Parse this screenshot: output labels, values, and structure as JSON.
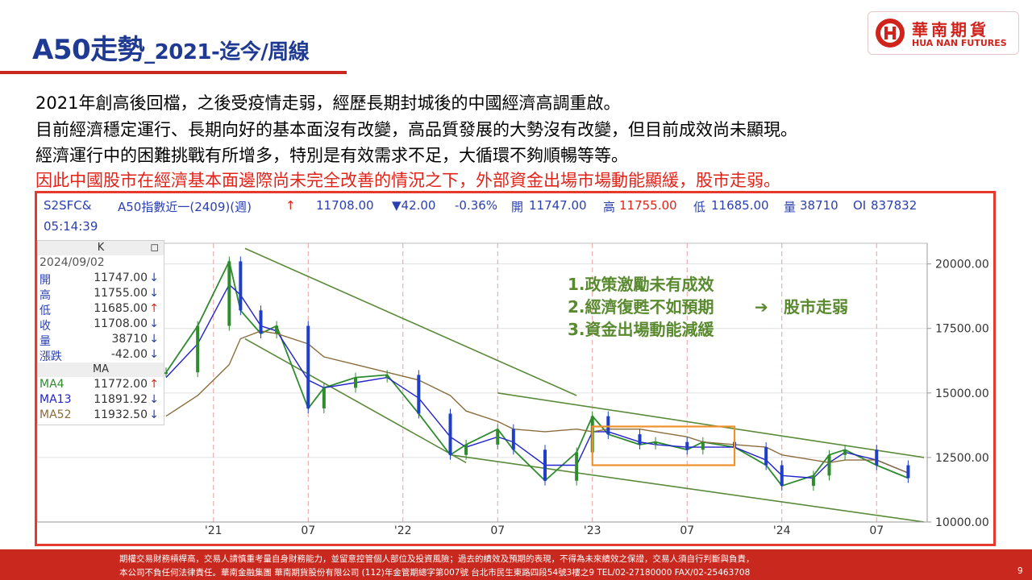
{
  "title": {
    "main": "A50走勢",
    "sub": "_2021-迄今/周線"
  },
  "logo": {
    "zh": "華南期貨",
    "en": "HUA NAN FUTURES"
  },
  "commentary": [
    "2021年創高後回檔，之後受疫情走弱，經歷長期封城後的中國經濟高調重啟。",
    "目前經濟穩定運行、長期向好的基本面沒有改變，高品質發展的大勢沒有改變，但目前成效尚未顯現。",
    "經濟運行中的困難挑戰有所增多，特別是有效需求不足，大循環不夠順暢等等。",
    "因此中國股市在經濟基本面邊際尚未完全改善的情況之下，外部資金出場市場動能顯緩，股市走弱。"
  ],
  "quote": {
    "symbol": "S2SFC&",
    "name": "A50指數近一(2409)(週)",
    "arrow": "↑",
    "last": "11708.00",
    "change": "▼42.00",
    "pct": "-0.36%",
    "open_label": "開",
    "open": "11747.00",
    "high_label": "高",
    "high": "11755.00",
    "low_label": "低",
    "low": "11685.00",
    "vol_label": "量",
    "vol": "38710",
    "oi_label": "OI",
    "oi": "837832",
    "time": "05:14:39"
  },
  "info_panel": {
    "header": "K",
    "date": "2024/09/02",
    "rows": [
      {
        "label": "開",
        "value": "11747.00",
        "arrow": "↓"
      },
      {
        "label": "高",
        "value": "11755.00",
        "arrow": "↓"
      },
      {
        "label": "低",
        "value": "11685.00",
        "arrow": "↑"
      },
      {
        "label": "收",
        "value": "11708.00",
        "arrow": "↓"
      },
      {
        "label": "量",
        "value": "38710",
        "arrow": "↓"
      },
      {
        "label": "漲跌",
        "value": "-42.00",
        "arrow": "↓"
      }
    ],
    "ma_header": "MA",
    "ma_rows": [
      {
        "label": "MA4",
        "value": "11772.00",
        "arrow": "↑"
      },
      {
        "label": "MA13",
        "value": "11891.92",
        "arrow": "↓"
      },
      {
        "label": "MA52",
        "value": "11932.50",
        "arrow": "↓"
      }
    ]
  },
  "chart_data": {
    "type": "line",
    "title": "",
    "ylim": [
      10000,
      20800
    ],
    "y_ticks": [
      "20000.00",
      "17500.00",
      "15000.00",
      "12500.00",
      "10000.00"
    ],
    "y_tick_values": [
      20000,
      17500,
      15000,
      12500,
      10000
    ],
    "x_ticks": [
      "'21",
      "07",
      "'22",
      "07",
      "'23",
      "07",
      "'24",
      "07"
    ],
    "x_tick_values": [
      "2021-01",
      "2021-07",
      "2022-01",
      "2022-07",
      "2023-01",
      "2023-07",
      "2024-01",
      "2024-07"
    ],
    "x_range": [
      "2020-10",
      "2024-10"
    ],
    "grid": true,
    "price_dates": [
      "2020-10",
      "2020-12",
      "2021-02",
      "2021-02",
      "2021-04",
      "2021-05",
      "2021-07",
      "2021-08",
      "2021-10",
      "2021-12",
      "2022-02",
      "2022-04",
      "2022-05",
      "2022-07",
      "2022-08",
      "2022-10",
      "2022-12",
      "2023-01",
      "2023-02",
      "2023-04",
      "2023-05",
      "2023-07",
      "2023-08",
      "2023-10",
      "2023-12",
      "2024-01",
      "2024-03",
      "2024-04",
      "2024-05",
      "2024-07",
      "2024-09"
    ],
    "series": [
      {
        "values": [
          15800,
          17600,
          20100,
          18200,
          17300,
          17600,
          14400,
          15200,
          15600,
          15700,
          14200,
          12600,
          13000,
          13600,
          12800,
          11600,
          12700,
          14100,
          13400,
          13000,
          13100,
          12800,
          13100,
          12900,
          12200,
          11400,
          11800,
          12600,
          12800,
          12200,
          11700
        ]
      },
      {
        "values": [
          15600,
          16900,
          19200,
          18800,
          17600,
          17400,
          15500,
          15200,
          15400,
          15600,
          14800,
          13300,
          12900,
          13300,
          13100,
          12200,
          12200,
          13500,
          13500,
          13100,
          13000,
          12900,
          12900,
          12900,
          12400,
          11800,
          11700,
          12300,
          12700,
          12400,
          11900
        ]
      },
      {
        "values": [
          14100,
          14900,
          16100,
          17100,
          17400,
          17300,
          16900,
          16400,
          16100,
          15800,
          15500,
          14900,
          14300,
          13900,
          13600,
          13500,
          13600,
          13500,
          13600,
          13600,
          13500,
          13300,
          13100,
          13000,
          12900,
          12600,
          12400,
          12300,
          12400,
          12400,
          11900
        ]
      }
    ],
    "trendlines": [
      {
        "from": [
          "2021-03",
          20600
        ],
        "to": [
          "2022-12",
          14900
        ]
      },
      {
        "from": [
          "2021-03",
          17100
        ],
        "to": [
          "2022-05",
          12300
        ]
      },
      {
        "from": [
          "2022-07",
          15000
        ],
        "to": [
          "2024-10",
          12500
        ]
      },
      {
        "from": [
          "2022-04",
          12600
        ],
        "to": [
          "2024-10",
          10000
        ]
      }
    ],
    "highlight": {
      "from": [
        "2023-01",
        13700
      ],
      "to": [
        "2023-10",
        12200
      ]
    },
    "annotations": [
      "1.政策激勵未有成效",
      "2.經濟復甦不如預期",
      "3.資金出場動能減緩"
    ],
    "arrow_glyph": "➔",
    "conclusion": "股市走弱",
    "colors": {
      "candle_up": "#2e8b2e",
      "candle_down": "#1f3fc8",
      "ma4": "#2e8b2e",
      "ma13": "#2222cc",
      "ma52": "#8b6d3c",
      "trend": "#5a8a3a",
      "box": "#f0902a",
      "annot": "#5a8a30"
    }
  },
  "footer": {
    "line1": "期權交易財務槓桿高，交易人請慎重考量自身財務能力，並留意控管個人部位及投資風險；過去的績效及預期的表現，不得為未來績效之保證，交易人須自行判斷與負責，",
    "line2": "本公司不負任何法律責任。華南金融集團 華南期貨股份有限公司 (112)年金管期總字第007號 台北市民生東路四段54號3樓之9 TEL/02-27180000 FAX/02-25463708",
    "page": "9"
  }
}
